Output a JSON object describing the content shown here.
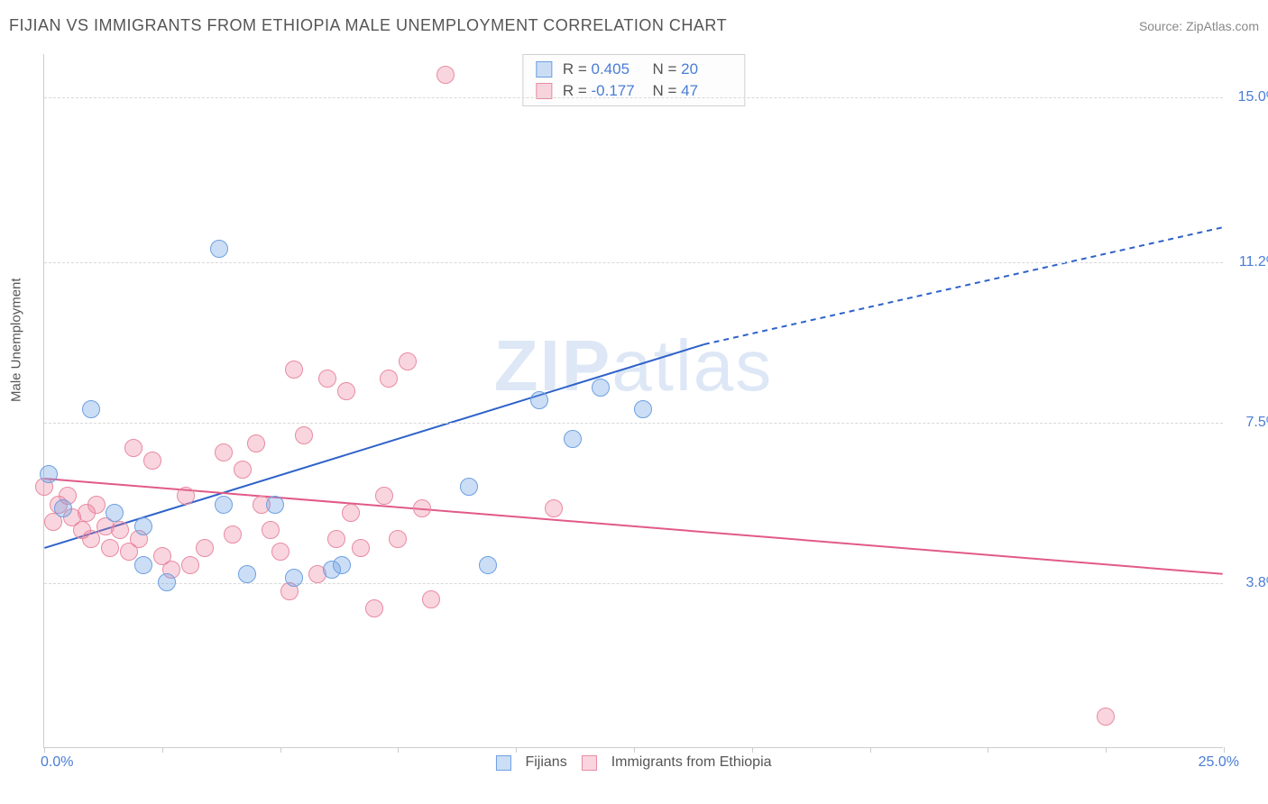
{
  "title": "FIJIAN VS IMMIGRANTS FROM ETHIOPIA MALE UNEMPLOYMENT CORRELATION CHART",
  "source": "Source: ZipAtlas.com",
  "watermark": "ZIPatlas",
  "y_axis_label": "Male Unemployment",
  "chart": {
    "type": "scatter-with-regression",
    "x_range": [
      0,
      25
    ],
    "y_range": [
      0,
      16
    ],
    "x_ticks": [
      0,
      2.5,
      5,
      7.5,
      10,
      12.5,
      15,
      17.5,
      20,
      22.5,
      25
    ],
    "y_gridlines": [
      3.8,
      7.5,
      11.2,
      15.0
    ],
    "y_tick_labels": [
      "3.8%",
      "7.5%",
      "11.2%",
      "15.0%"
    ],
    "x_corner_min": "0.0%",
    "x_corner_max": "25.0%",
    "background_color": "#ffffff",
    "grid_color": "#d8d8d8",
    "axis_color": "#cccccc",
    "label_color": "#555555",
    "tick_value_color": "#4a7dd6",
    "marker_radius": 10,
    "marker_border_width": 1.5,
    "trend_line_width": 2
  },
  "series": {
    "fijians": {
      "label": "Fijians",
      "fill_color": "rgba(110,160,225,0.35)",
      "stroke_color": "#6da0e1",
      "trend_color": "#2e62c9",
      "r_value": "0.405",
      "n_value": "20",
      "trend": {
        "x1": 0,
        "y1": 4.6,
        "x2": 14,
        "y2": 9.3,
        "x2_dash": 25,
        "y2_dash": 12.0
      },
      "points": [
        [
          0.1,
          6.3
        ],
        [
          0.4,
          5.5
        ],
        [
          1.0,
          7.8
        ],
        [
          1.5,
          5.4
        ],
        [
          2.1,
          4.2
        ],
        [
          2.1,
          5.1
        ],
        [
          2.6,
          3.8
        ],
        [
          3.7,
          11.5
        ],
        [
          3.8,
          5.6
        ],
        [
          4.3,
          4.0
        ],
        [
          4.9,
          5.6
        ],
        [
          5.3,
          3.9
        ],
        [
          6.1,
          4.1
        ],
        [
          6.3,
          4.2
        ],
        [
          9.0,
          6.0
        ],
        [
          9.4,
          4.2
        ],
        [
          10.5,
          8.0
        ],
        [
          11.2,
          7.1
        ],
        [
          11.8,
          8.3
        ],
        [
          12.7,
          7.8
        ]
      ]
    },
    "ethiopia": {
      "label": "Immigrants from Ethiopia",
      "fill_color": "rgba(235,120,150,0.30)",
      "stroke_color": "#e98aa3",
      "trend_color": "#e15a87",
      "r_value": "-0.177",
      "n_value": "47",
      "trend": {
        "x1": 0,
        "y1": 6.2,
        "x2": 25,
        "y2": 4.0
      },
      "points": [
        [
          0.0,
          6.0
        ],
        [
          0.2,
          5.2
        ],
        [
          0.3,
          5.6
        ],
        [
          0.5,
          5.8
        ],
        [
          0.6,
          5.3
        ],
        [
          0.8,
          5.0
        ],
        [
          0.9,
          5.4
        ],
        [
          1.0,
          4.8
        ],
        [
          1.1,
          5.6
        ],
        [
          1.3,
          5.1
        ],
        [
          1.4,
          4.6
        ],
        [
          1.6,
          5.0
        ],
        [
          1.8,
          4.5
        ],
        [
          1.9,
          6.9
        ],
        [
          2.0,
          4.8
        ],
        [
          2.3,
          6.6
        ],
        [
          2.5,
          4.4
        ],
        [
          2.7,
          4.1
        ],
        [
          3.0,
          5.8
        ],
        [
          3.1,
          4.2
        ],
        [
          3.4,
          4.6
        ],
        [
          3.8,
          6.8
        ],
        [
          4.0,
          4.9
        ],
        [
          4.5,
          7.0
        ],
        [
          4.6,
          5.6
        ],
        [
          4.8,
          5.0
        ],
        [
          5.0,
          4.5
        ],
        [
          5.2,
          3.6
        ],
        [
          5.3,
          8.7
        ],
        [
          5.5,
          7.2
        ],
        [
          5.8,
          4.0
        ],
        [
          6.0,
          8.5
        ],
        [
          6.2,
          4.8
        ],
        [
          6.4,
          8.2
        ],
        [
          6.5,
          5.4
        ],
        [
          6.7,
          4.6
        ],
        [
          7.0,
          3.2
        ],
        [
          7.2,
          5.8
        ],
        [
          7.3,
          8.5
        ],
        [
          7.5,
          4.8
        ],
        [
          7.7,
          8.9
        ],
        [
          8.0,
          5.5
        ],
        [
          8.2,
          3.4
        ],
        [
          8.5,
          15.5
        ],
        [
          10.8,
          5.5
        ],
        [
          22.5,
          0.7
        ],
        [
          4.2,
          6.4
        ]
      ]
    }
  },
  "legend_stats_label_r": "R =",
  "legend_stats_label_n": "N ="
}
